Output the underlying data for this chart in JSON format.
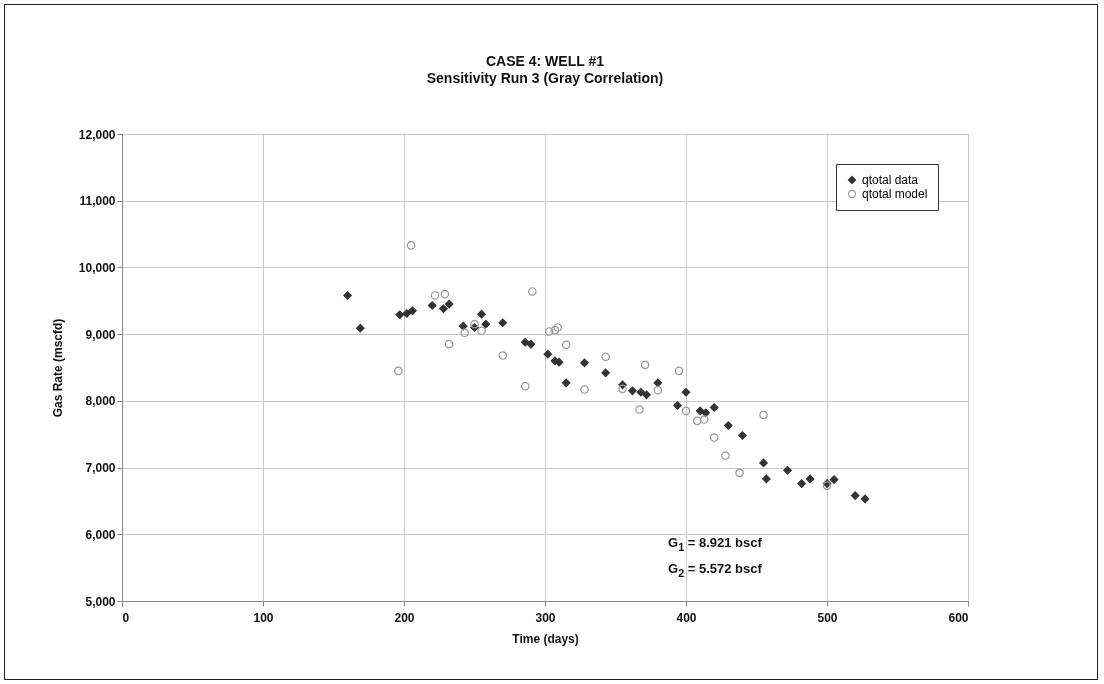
{
  "chart_data": {
    "type": "scatter",
    "title": "CASE 4: WELL #1",
    "subtitle": "Sensitivity Run 3 (Gray Correlation)",
    "xlabel": "Time (days)",
    "ylabel": "Gas Rate (mscfd)",
    "xlim": [
      0,
      600
    ],
    "xticks": [
      0,
      100,
      200,
      300,
      400,
      500,
      600
    ],
    "ylim": [
      5000,
      12000
    ],
    "yticks": [
      {
        "value": 5000,
        "label": "5,000"
      },
      {
        "value": 6000,
        "label": "6,000"
      },
      {
        "value": 7000,
        "label": "7,000"
      },
      {
        "value": 8000,
        "label": "8,000"
      },
      {
        "value": 9000,
        "label": "9,000"
      },
      {
        "value": 10000,
        "label": "10,000"
      },
      {
        "value": 11000,
        "label": "11,000"
      },
      {
        "value": 12000,
        "label": "12,000"
      }
    ],
    "grid": true,
    "legend": "top right",
    "annotations": [
      "G$_{1}$ = 8.921 bscf",
      "G$_{2}$ = 5.572 bscf"
    ],
    "series": [
      {
        "name": "qtotal data",
        "color": "#333333",
        "marker": "diamond",
        "x": [
          160,
          169,
          197,
          202,
          206,
          220,
          228,
          232,
          242,
          250,
          255,
          258,
          270,
          286,
          290,
          302,
          307,
          310,
          315,
          328,
          343,
          355,
          362,
          368,
          372,
          380,
          394,
          400,
          410,
          414,
          420,
          430,
          440,
          455,
          457,
          472,
          482,
          488,
          500,
          505,
          520,
          527
        ],
        "values": [
          9580,
          9090,
          9290,
          9310,
          9350,
          9430,
          9380,
          9450,
          9120,
          9100,
          9300,
          9150,
          9170,
          8880,
          8850,
          8700,
          8600,
          8580,
          8270,
          8570,
          8420,
          8240,
          8150,
          8130,
          8090,
          8270,
          7930,
          8130,
          7850,
          7820,
          7900,
          7630,
          7480,
          7070,
          6830,
          6960,
          6760,
          6830,
          6760,
          6820,
          6580,
          6530
        ]
      },
      {
        "name": "qtotal model",
        "color": "#999999",
        "marker": "circle",
        "x": [
          196,
          205,
          222,
          229,
          232,
          243,
          250,
          255,
          270,
          286,
          291,
          303,
          307,
          309,
          315,
          328,
          343,
          355,
          367,
          371,
          380,
          395,
          400,
          408,
          413,
          420,
          428,
          438,
          455,
          500
        ],
        "values": [
          8450,
          10330,
          9580,
          9600,
          8850,
          9020,
          9150,
          9050,
          8680,
          8220,
          9640,
          9040,
          9060,
          9100,
          8840,
          8170,
          8660,
          8180,
          7870,
          8540,
          8160,
          8450,
          7850,
          7700,
          7720,
          7450,
          7180,
          6920,
          7790,
          6730
        ]
      }
    ]
  }
}
